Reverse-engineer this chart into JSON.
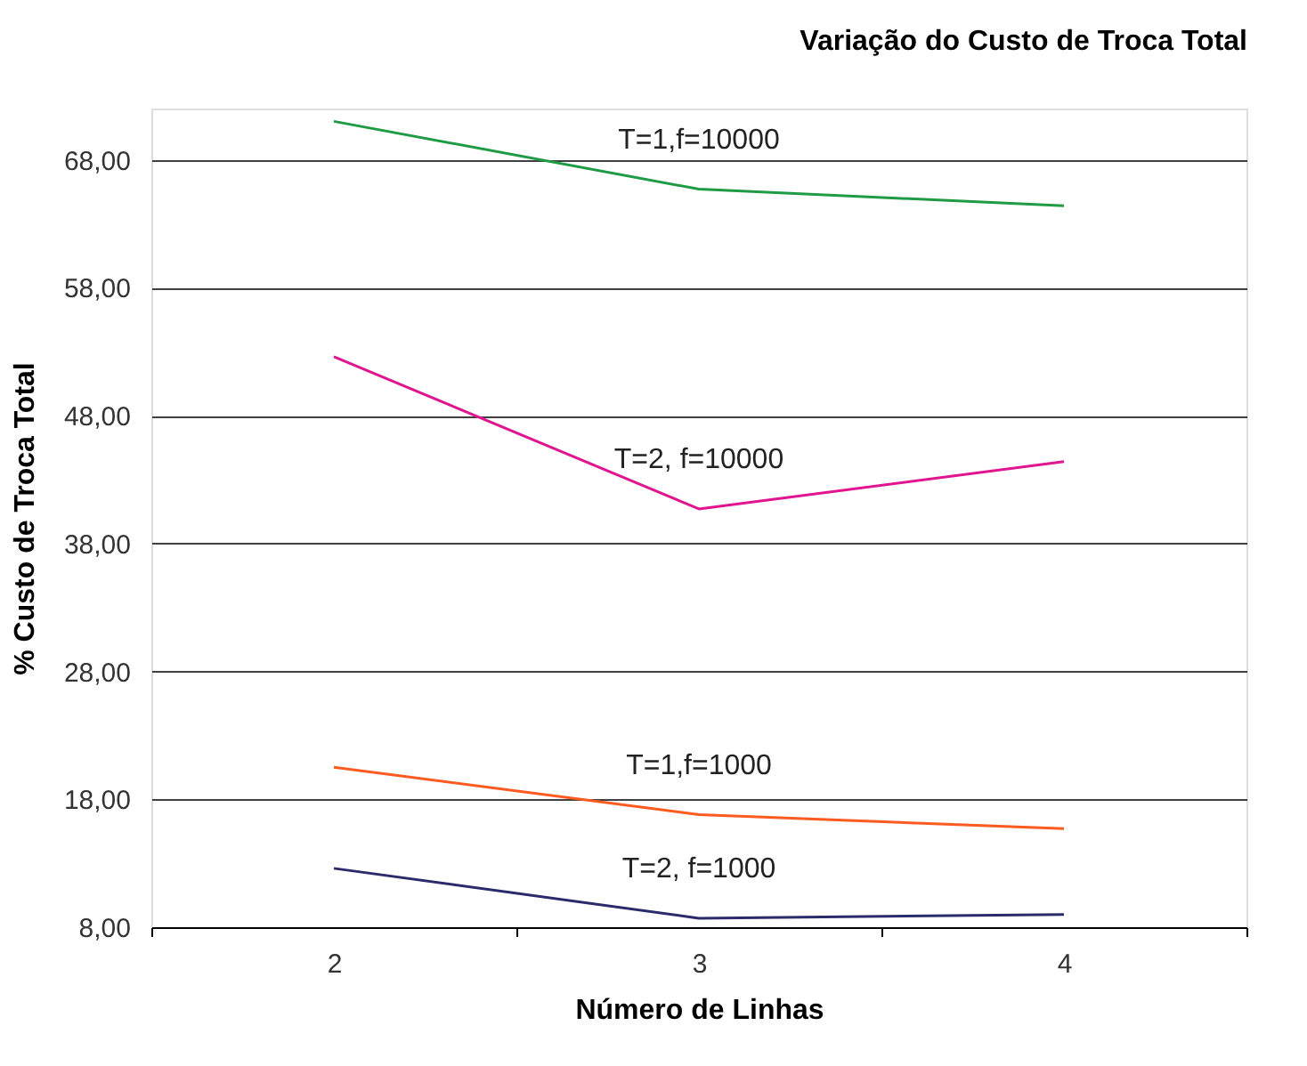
{
  "chart_data": {
    "type": "line",
    "title": "Variação do Custo de Troca Total",
    "xlabel": "Número de Linhas",
    "ylabel": "% Custo de Troca Total",
    "categories": [
      "2",
      "3",
      "4"
    ],
    "series": [
      {
        "name": "T=1,f=10000",
        "color": "#1f9a45",
        "values": [
          71.0,
          65.7,
          64.4
        ]
      },
      {
        "name": "T=2, f=10000",
        "color": "#e0158f",
        "values": [
          52.6,
          40.7,
          44.4
        ]
      },
      {
        "name": "T=1,f=1000",
        "color": "#ff5a1f",
        "values": [
          20.5,
          16.8,
          15.7
        ]
      },
      {
        "name": "T=2, f=1000",
        "color": "#2b2b6b",
        "values": [
          12.6,
          8.7,
          9.0
        ]
      }
    ],
    "ylim": [
      8,
      72
    ],
    "yticks": [
      {
        "value": 8,
        "label": "8,00"
      },
      {
        "value": 18,
        "label": "18,00"
      },
      {
        "value": 28,
        "label": "28,00"
      },
      {
        "value": 38,
        "label": "38,00"
      },
      {
        "value": 48,
        "label": "48,00"
      },
      {
        "value": 58,
        "label": "58,00"
      },
      {
        "value": 68,
        "label": "68,00"
      }
    ],
    "grid": "y",
    "legend": false,
    "marker": "none",
    "line_style": "solid"
  }
}
